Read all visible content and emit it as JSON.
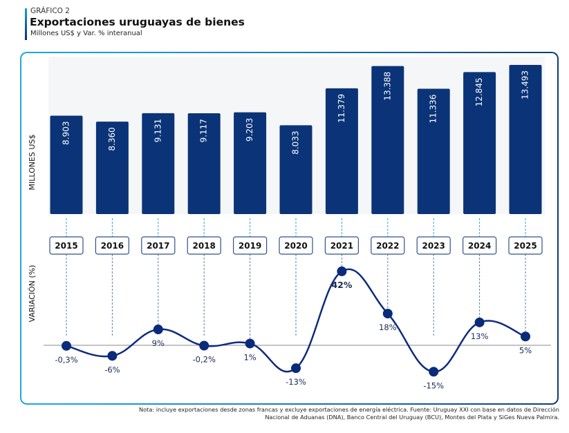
{
  "header": {
    "kicker": "GRÁFICO 2",
    "title": "Exportaciones uruguayas de bienes",
    "subtitle": "Millones US$ y Var. % interanual"
  },
  "colors": {
    "bar": "#0b3478",
    "line": "#0e2a80",
    "dot": "#0a2a7a",
    "guide": "#2ba3d6",
    "year_box_border": "#2f4f8a",
    "bar_area_bg": "#f5f6f7",
    "zero_line": "#888888"
  },
  "chart_data": [
    {
      "type": "bar",
      "title": "Exportaciones uruguayas de bienes",
      "ylabel": "MILLONES US$",
      "categories": [
        "2015",
        "2016",
        "2017",
        "2018",
        "2019",
        "2020",
        "2021",
        "2022",
        "2023",
        "2024",
        "2025"
      ],
      "values": [
        8903,
        8360,
        9131,
        9117,
        9203,
        8033,
        11379,
        13388,
        11336,
        12845,
        13493
      ],
      "value_labels": [
        "8.903",
        "8.360",
        "9.131",
        "9.117",
        "9.203",
        "8.033",
        "11.379",
        "13.388",
        "11.336",
        "12.845",
        "13.493"
      ],
      "ylim": [
        0,
        13493
      ],
      "grid": false
    },
    {
      "type": "line",
      "ylabel": "VARIACIÓN (%)",
      "categories": [
        "2015",
        "2016",
        "2017",
        "2018",
        "2019",
        "2020",
        "2021",
        "2022",
        "2023",
        "2024",
        "2025"
      ],
      "values": [
        -0.3,
        -6,
        9,
        -0.2,
        1,
        -13,
        42,
        18,
        -15,
        13,
        5
      ],
      "value_labels": [
        "-0,3%",
        "-6%",
        "9%",
        "-0,2%",
        "1%",
        "-13%",
        "42%",
        "18%",
        "-15%",
        "13%",
        "5%"
      ],
      "label_positions": [
        "below",
        "below",
        "below",
        "below",
        "below",
        "below",
        "below",
        "below",
        "below",
        "below",
        "below"
      ],
      "zero_line": true,
      "grid": false
    }
  ],
  "footnote": {
    "line1": "Nota: incluye exportaciones desde zonas francas y excluye exportaciones de energía eléctrica. Fuente: Uruguay XXI con base en datos de Dirección",
    "line2": "Nacional de Aduanas (DNA), Banco Central del Uruguay (BCU), Montes del Plata y SiGes Nueva Palmira."
  }
}
